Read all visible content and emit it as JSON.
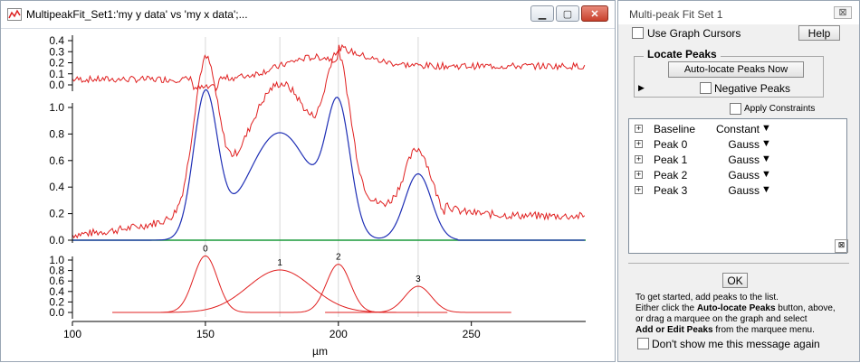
{
  "graph_window": {
    "title": "MultipeakFit_Set1:'my y data' vs 'my x data';...",
    "buttons": {
      "minimize": "▁",
      "maximize": "▢",
      "close": "✕"
    },
    "icon": "graph-window-icon"
  },
  "panel": {
    "title": "Multi-peak Fit Set 1",
    "close": "⊠",
    "use_graph_cursors": "Use Graph Cursors",
    "help": "Help",
    "locate_peaks_group": "Locate Peaks",
    "auto_locate": "Auto-locate Peaks Now",
    "negative_peaks": "Negative Peaks",
    "apply_constraints": "Apply Constraints",
    "disclosure": "▶",
    "peak_list": [
      {
        "name": "Baseline",
        "type": "Constant"
      },
      {
        "name": "Peak 0",
        "type": "Gauss"
      },
      {
        "name": "Peak 1",
        "type": "Gauss"
      },
      {
        "name": "Peak 2",
        "type": "Gauss"
      },
      {
        "name": "Peak 3",
        "type": "Gauss"
      }
    ],
    "ok": "OK",
    "message": {
      "line1": "To get started, add peaks to the list.",
      "line2_a": "Either click the ",
      "line2_b": "Auto-locate Peaks",
      "line2_c": " button, above,",
      "line3": "or drag a marquee on the graph and select",
      "line4_a": "Add or Edit Peaks",
      "line4_b": " from the marquee menu."
    },
    "dont_show": "Don't show me this message again"
  },
  "chart_data": {
    "type": "line",
    "xlabel": "µm",
    "xlim": [
      100,
      293
    ],
    "x_ticks": [
      100,
      150,
      200,
      250
    ],
    "peak_guides": [
      150,
      178,
      200,
      230
    ],
    "top": {
      "ylim": [
        -0.05,
        0.45
      ],
      "y_ticks": [
        "0.4",
        "0.3",
        "0.2",
        "0.1",
        "0.0"
      ],
      "series": [
        {
          "name": "residual",
          "color": "#e02020"
        }
      ]
    },
    "middle": {
      "ylim": [
        0,
        1.1
      ],
      "y_ticks": [
        "1.0",
        "0.8",
        "0.6",
        "0.4",
        "0.2",
        "0.0"
      ],
      "series": [
        {
          "name": "data",
          "color": "#e02020"
        },
        {
          "name": "fit",
          "color": "#1f2fb5"
        },
        {
          "name": "baseline",
          "color": "#1a9a3a"
        }
      ]
    },
    "bottom": {
      "ylim": [
        0,
        1.1
      ],
      "y_ticks": [
        "1.0",
        "0.8",
        "0.6",
        "0.4",
        "0.2",
        "0.0"
      ],
      "peaks": [
        {
          "label": "0",
          "center": 150,
          "amplitude": 1.08,
          "width": 4.5
        },
        {
          "label": "1",
          "center": 178,
          "amplitude": 0.81,
          "width": 12
        },
        {
          "label": "2",
          "center": 200,
          "amplitude": 0.92,
          "width": 4.5
        },
        {
          "label": "3",
          "center": 230,
          "amplitude": 0.5,
          "width": 5
        }
      ],
      "color": "#e02020"
    }
  }
}
